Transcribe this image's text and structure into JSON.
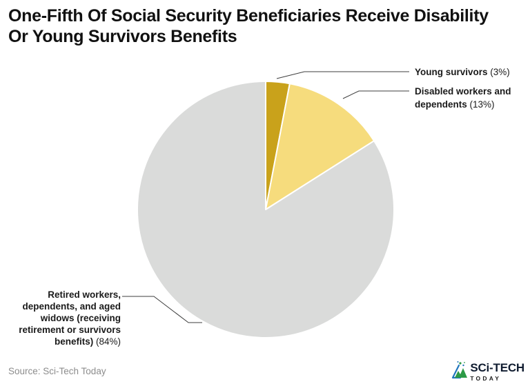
{
  "header": {
    "title_line1": "One-Fifth Of Social Security Beneficiaries Receive Disability",
    "title_line2": "Or Young Survivors Benefits"
  },
  "chart_data": {
    "type": "pie",
    "title": "One-Fifth Of Social Security Beneficiaries Receive Disability Or Young Survivors Benefits",
    "start_angle_deg": 0,
    "direction": "clockwise",
    "slices": [
      {
        "label": "Young survivors",
        "pct_text": "(3%)",
        "value": 3,
        "color": "#C9A21B"
      },
      {
        "label": "Disabled workers and dependents",
        "pct_text": "(13%)",
        "value": 13,
        "color": "#F6DC7D"
      },
      {
        "label": "Retired workers, dependents, and aged widows (receiving retirement or survivors benefits)",
        "pct_text": "(84%)",
        "value": 84,
        "color": "#DADBDA"
      }
    ],
    "legend_position": "callout-labels",
    "grid": false
  },
  "footer": {
    "source": "Source: Sci-Tech Today",
    "logo_main": "SCi-TECH",
    "logo_sub": "TODAY"
  },
  "colors": {
    "accent_dark_gold": "#C9A21B",
    "accent_light_gold": "#F6DC7D",
    "neutral_gray": "#DADBDA",
    "leader_line": "#3d3d3d",
    "logo_navy": "#101c30",
    "logo_green": "#2c9a47",
    "logo_blue": "#2176bd"
  }
}
